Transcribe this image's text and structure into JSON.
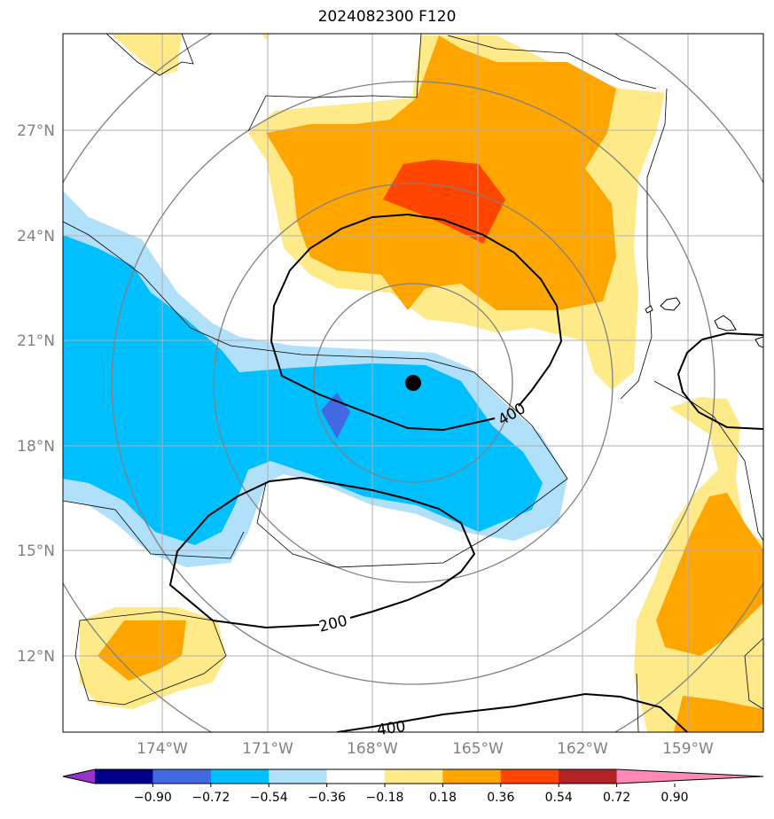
{
  "title": "2024082300 F120",
  "map": {
    "lat_labels": [
      "27°N",
      "24°N",
      "21°N",
      "18°N",
      "15°N",
      "12°N"
    ],
    "lon_labels": [
      "174°W",
      "171°W",
      "168°W",
      "165°W",
      "162°W",
      "159°W"
    ],
    "contour_labels": [
      "400",
      "200",
      "400"
    ],
    "grid": true,
    "storm_center_marker": "black-dot"
  },
  "colorbar": {
    "ticks": [
      "−0.90",
      "−0.72",
      "−0.54",
      "−0.36",
      "−0.18",
      "0.18",
      "0.36",
      "0.54",
      "0.72",
      "0.90"
    ],
    "colors": [
      "#9932cc",
      "#00008b",
      "#4169e1",
      "#00bfff",
      "#b0e0fa",
      "#ffffff",
      "#ffea8a",
      "#ffa500",
      "#ff4500",
      "#b22222",
      "#ff89b5"
    ],
    "extend": "both"
  }
}
